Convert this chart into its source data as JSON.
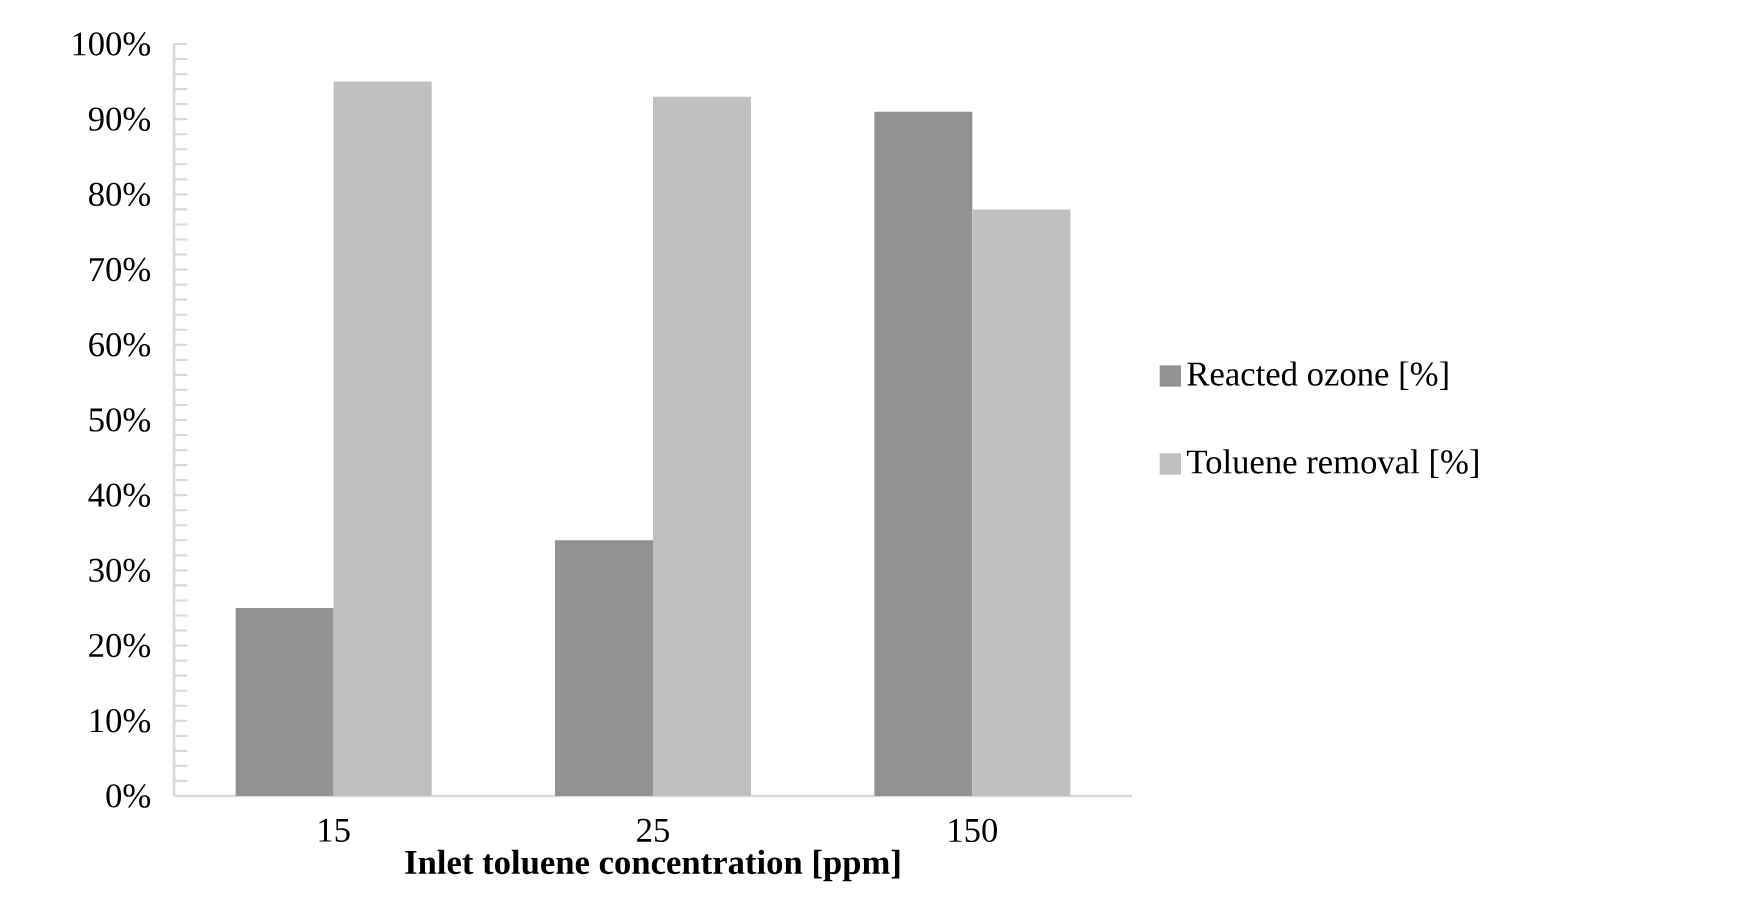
{
  "chart_data": {
    "type": "bar",
    "xlabel": "Inlet toluene concentration [ppm]",
    "categories": [
      "15",
      "25",
      "150"
    ],
    "series": [
      {
        "name": "Reacted ozone [%]",
        "color": "#929292",
        "values": [
          25,
          34,
          91
        ]
      },
      {
        "name": "Toluene removal [%]",
        "color": "#bfbfbf",
        "values": [
          95,
          93,
          78
        ]
      }
    ],
    "ylim": [
      0,
      100
    ],
    "yticks": [
      {
        "value": 0,
        "label": "0%"
      },
      {
        "value": 2,
        "label": null
      },
      {
        "value": 4,
        "label": null
      },
      {
        "value": 6,
        "label": null
      },
      {
        "value": 8,
        "label": null
      },
      {
        "value": 10,
        "label": "10%"
      },
      {
        "value": 12,
        "label": null
      },
      {
        "value": 14,
        "label": null
      },
      {
        "value": 16,
        "label": null
      },
      {
        "value": 18,
        "label": null
      },
      {
        "value": 20,
        "label": "20%"
      },
      {
        "value": 22,
        "label": null
      },
      {
        "value": 24,
        "label": null
      },
      {
        "value": 26,
        "label": null
      },
      {
        "value": 28,
        "label": null
      },
      {
        "value": 30,
        "label": "30%"
      },
      {
        "value": 32,
        "label": null
      },
      {
        "value": 34,
        "label": null
      },
      {
        "value": 36,
        "label": null
      },
      {
        "value": 38,
        "label": null
      },
      {
        "value": 40,
        "label": "40%"
      },
      {
        "value": 42,
        "label": null
      },
      {
        "value": 44,
        "label": null
      },
      {
        "value": 46,
        "label": null
      },
      {
        "value": 48,
        "label": null
      },
      {
        "value": 50,
        "label": "50%"
      },
      {
        "value": 52,
        "label": null
      },
      {
        "value": 54,
        "label": null
      },
      {
        "value": 56,
        "label": null
      },
      {
        "value": 58,
        "label": null
      },
      {
        "value": 60,
        "label": "60%"
      },
      {
        "value": 62,
        "label": null
      },
      {
        "value": 64,
        "label": null
      },
      {
        "value": 66,
        "label": null
      },
      {
        "value": 68,
        "label": null
      },
      {
        "value": 70,
        "label": "70%"
      },
      {
        "value": 72,
        "label": null
      },
      {
        "value": 74,
        "label": null
      },
      {
        "value": 76,
        "label": null
      },
      {
        "value": 78,
        "label": null
      },
      {
        "value": 80,
        "label": "80%"
      },
      {
        "value": 82,
        "label": null
      },
      {
        "value": 84,
        "label": null
      },
      {
        "value": 86,
        "label": null
      },
      {
        "value": 88,
        "label": null
      },
      {
        "value": 90,
        "label": "90%"
      },
      {
        "value": 92,
        "label": null
      },
      {
        "value": 94,
        "label": null
      },
      {
        "value": 96,
        "label": null
      },
      {
        "value": 98,
        "label": null
      },
      {
        "value": 100,
        "label": "100%"
      }
    ],
    "grid": false,
    "legend": "right"
  }
}
